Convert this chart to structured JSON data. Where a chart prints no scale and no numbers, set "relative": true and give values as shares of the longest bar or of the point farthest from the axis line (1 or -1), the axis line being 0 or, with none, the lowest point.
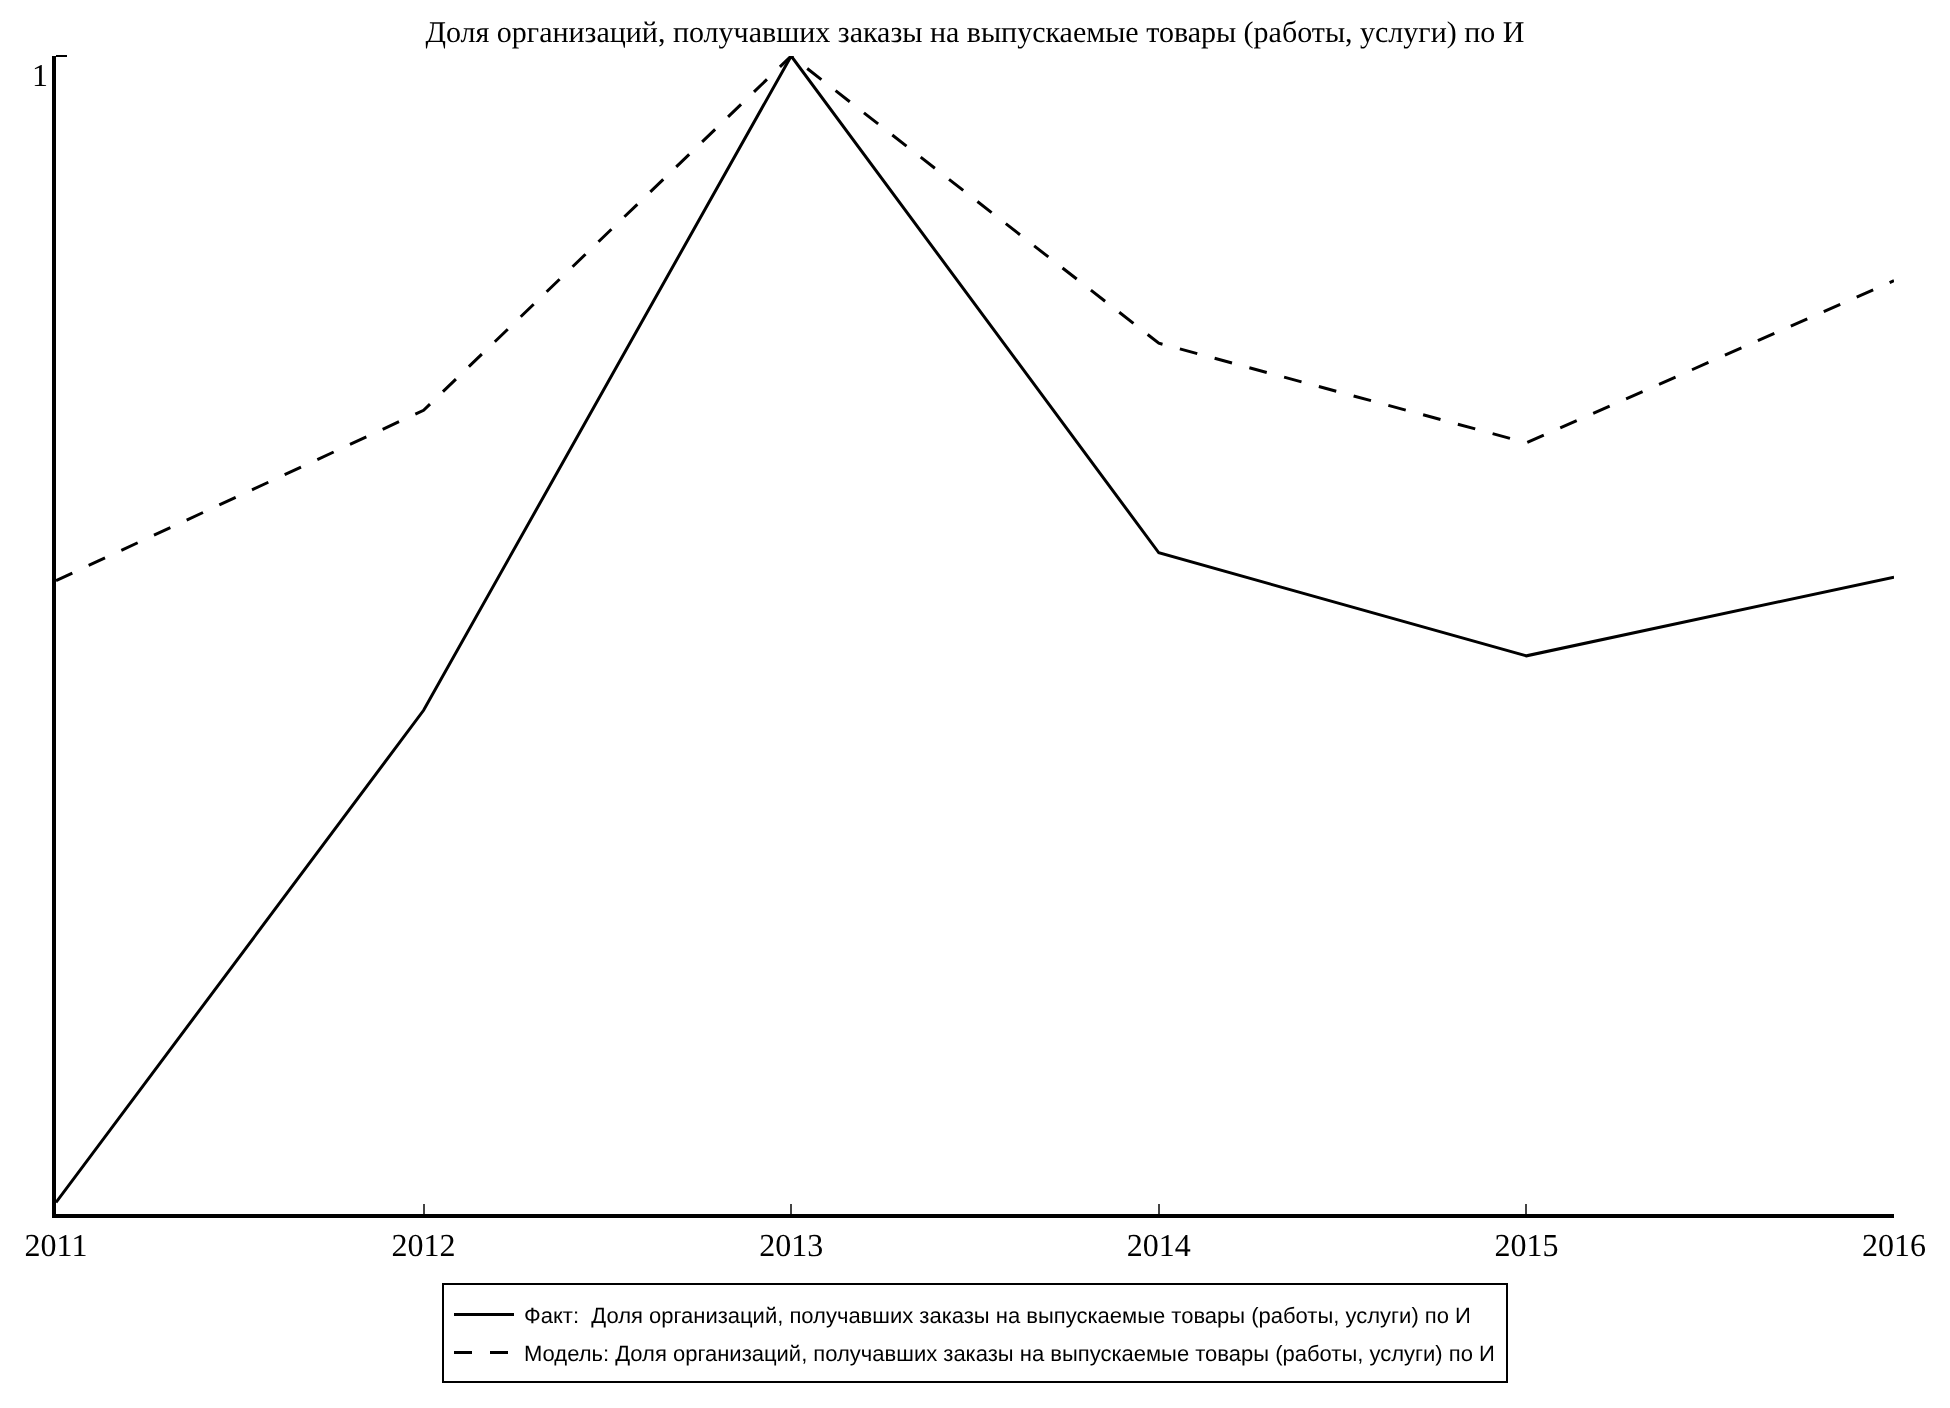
{
  "chart_data": {
    "type": "line",
    "title": "Доля организаций, получавших заказы на выпускаемые товары (работы, услуги) по И",
    "relative": true,
    "x": [
      2011,
      2012,
      2013,
      2014,
      2015,
      2016
    ],
    "xlim": [
      2011,
      2016
    ],
    "xticks": [
      2011,
      2012,
      2013,
      2014,
      2015,
      2016
    ],
    "series": [
      {
        "name": "Факт:  Доля организаций, получавших заказы на выпускаемые товары (работы, услуги) по И",
        "color": "#000000",
        "line_style": "solid",
        "values": [
          0.01,
          0.435,
          1,
          0.571,
          0.482,
          0.55
        ]
      },
      {
        "name": "Модель: Доля организаций, получавших заказы на выпускаемые товары (работы, услуги) по И",
        "color": "#000000",
        "line_style": "dashed",
        "values": [
          0.547,
          0.694,
          1,
          0.752,
          0.666,
          0.806
        ]
      }
    ],
    "annotations": [
      "1"
    ],
    "legend": "bottom",
    "marker": "none"
  }
}
